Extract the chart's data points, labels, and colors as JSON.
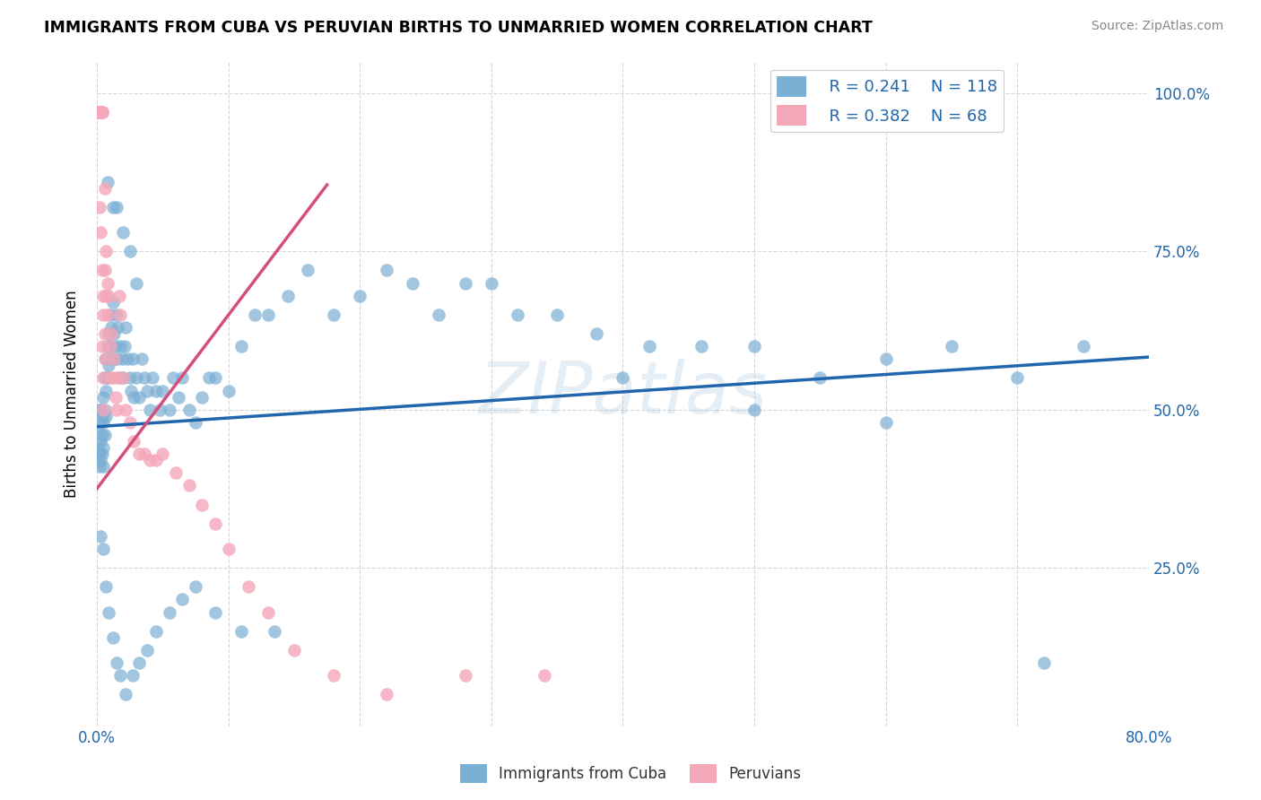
{
  "title": "IMMIGRANTS FROM CUBA VS PERUVIAN BIRTHS TO UNMARRIED WOMEN CORRELATION CHART",
  "source": "Source: ZipAtlas.com",
  "ylabel": "Births to Unmarried Women",
  "legend_blue_R": "0.241",
  "legend_blue_N": "118",
  "legend_pink_R": "0.382",
  "legend_pink_N": "68",
  "blue_color": "#7bafd4",
  "pink_color": "#f4a7b9",
  "blue_line_color": "#2166ac",
  "pink_line_color": "#d44f7a",
  "watermark": "ZIPatlas",
  "blue_scatter_x": [
    0.001,
    0.001,
    0.002,
    0.002,
    0.002,
    0.003,
    0.003,
    0.003,
    0.003,
    0.004,
    0.004,
    0.004,
    0.005,
    0.005,
    0.005,
    0.005,
    0.006,
    0.006,
    0.006,
    0.007,
    0.007,
    0.007,
    0.008,
    0.008,
    0.009,
    0.009,
    0.01,
    0.01,
    0.011,
    0.012,
    0.012,
    0.013,
    0.014,
    0.015,
    0.015,
    0.016,
    0.017,
    0.018,
    0.019,
    0.02,
    0.021,
    0.022,
    0.023,
    0.025,
    0.026,
    0.027,
    0.028,
    0.03,
    0.032,
    0.034,
    0.036,
    0.038,
    0.04,
    0.042,
    0.045,
    0.048,
    0.05,
    0.055,
    0.058,
    0.062,
    0.065,
    0.07,
    0.075,
    0.08,
    0.085,
    0.09,
    0.1,
    0.11,
    0.12,
    0.13,
    0.145,
    0.16,
    0.18,
    0.2,
    0.22,
    0.24,
    0.26,
    0.28,
    0.3,
    0.32,
    0.35,
    0.38,
    0.42,
    0.46,
    0.5,
    0.55,
    0.6,
    0.65,
    0.7,
    0.75,
    0.003,
    0.005,
    0.007,
    0.009,
    0.012,
    0.015,
    0.018,
    0.022,
    0.027,
    0.032,
    0.038,
    0.045,
    0.055,
    0.065,
    0.075,
    0.09,
    0.11,
    0.135,
    0.012,
    0.008,
    0.015,
    0.02,
    0.025,
    0.03,
    0.4,
    0.5,
    0.6,
    0.72
  ],
  "blue_scatter_y": [
    0.47,
    0.44,
    0.5,
    0.43,
    0.41,
    0.48,
    0.45,
    0.42,
    0.5,
    0.46,
    0.43,
    0.49,
    0.52,
    0.48,
    0.44,
    0.41,
    0.55,
    0.5,
    0.46,
    0.58,
    0.53,
    0.49,
    0.6,
    0.55,
    0.62,
    0.57,
    0.65,
    0.6,
    0.63,
    0.58,
    0.67,
    0.62,
    0.6,
    0.65,
    0.58,
    0.63,
    0.55,
    0.6,
    0.58,
    0.55,
    0.6,
    0.63,
    0.58,
    0.55,
    0.53,
    0.58,
    0.52,
    0.55,
    0.52,
    0.58,
    0.55,
    0.53,
    0.5,
    0.55,
    0.53,
    0.5,
    0.53,
    0.5,
    0.55,
    0.52,
    0.55,
    0.5,
    0.48,
    0.52,
    0.55,
    0.55,
    0.53,
    0.6,
    0.65,
    0.65,
    0.68,
    0.72,
    0.65,
    0.68,
    0.72,
    0.7,
    0.65,
    0.7,
    0.7,
    0.65,
    0.65,
    0.62,
    0.6,
    0.6,
    0.6,
    0.55,
    0.58,
    0.6,
    0.55,
    0.6,
    0.3,
    0.28,
    0.22,
    0.18,
    0.14,
    0.1,
    0.08,
    0.05,
    0.08,
    0.1,
    0.12,
    0.15,
    0.18,
    0.2,
    0.22,
    0.18,
    0.15,
    0.15,
    0.82,
    0.86,
    0.82,
    0.78,
    0.75,
    0.7,
    0.55,
    0.5,
    0.48,
    0.1
  ],
  "pink_scatter_x": [
    0.001,
    0.001,
    0.001,
    0.001,
    0.001,
    0.002,
    0.002,
    0.002,
    0.002,
    0.002,
    0.002,
    0.003,
    0.003,
    0.003,
    0.003,
    0.003,
    0.003,
    0.004,
    0.004,
    0.004,
    0.004,
    0.005,
    0.005,
    0.005,
    0.006,
    0.006,
    0.006,
    0.007,
    0.007,
    0.008,
    0.008,
    0.009,
    0.01,
    0.01,
    0.011,
    0.012,
    0.013,
    0.014,
    0.015,
    0.016,
    0.017,
    0.018,
    0.02,
    0.022,
    0.025,
    0.028,
    0.032,
    0.036,
    0.04,
    0.045,
    0.05,
    0.06,
    0.07,
    0.08,
    0.09,
    0.1,
    0.115,
    0.13,
    0.15,
    0.18,
    0.22,
    0.28,
    0.34,
    0.002,
    0.003,
    0.004,
    0.005,
    0.006
  ],
  "pink_scatter_y": [
    0.97,
    0.97,
    0.97,
    0.97,
    0.97,
    0.97,
    0.97,
    0.97,
    0.97,
    0.97,
    0.97,
    0.97,
    0.97,
    0.97,
    0.97,
    0.97,
    0.97,
    0.97,
    0.97,
    0.97,
    0.6,
    0.55,
    0.5,
    0.65,
    0.58,
    0.62,
    0.72,
    0.68,
    0.75,
    0.7,
    0.65,
    0.68,
    0.6,
    0.55,
    0.62,
    0.55,
    0.58,
    0.52,
    0.5,
    0.55,
    0.68,
    0.65,
    0.55,
    0.5,
    0.48,
    0.45,
    0.43,
    0.43,
    0.42,
    0.42,
    0.43,
    0.4,
    0.38,
    0.35,
    0.32,
    0.28,
    0.22,
    0.18,
    0.12,
    0.08,
    0.05,
    0.08,
    0.08,
    0.82,
    0.78,
    0.72,
    0.68,
    0.85
  ],
  "xlim": [
    0.0,
    0.8
  ],
  "ylim": [
    0.0,
    1.05
  ],
  "blue_line_x0": 0.0,
  "blue_line_x1": 0.8,
  "blue_line_y0": 0.473,
  "blue_line_y1": 0.583,
  "pink_line_x0": 0.0,
  "pink_line_x1": 0.175,
  "pink_line_y0": 0.375,
  "pink_line_y1": 0.855
}
